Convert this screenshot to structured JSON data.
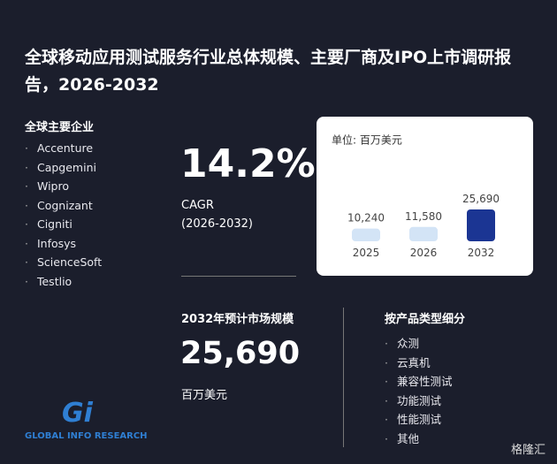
{
  "header": {
    "title": "全球移动应用测试服务行业总体规模、主要厂商及IPO上市调研报告，2026-2032"
  },
  "companies": {
    "title": "全球主要企业",
    "items": [
      "Accenture",
      "Capgemini",
      "Wipro",
      "Cognizant",
      "Cigniti",
      "Infosys",
      "ScienceSoft",
      "Testlio"
    ]
  },
  "cagr": {
    "value": "14.2%",
    "label": "CAGR",
    "period": "(2026-2032)"
  },
  "market": {
    "title": "2032年预计市场规模",
    "value": "25,690",
    "unit": "百万美元"
  },
  "segments": {
    "title": "按产品类型细分",
    "items": [
      "众测",
      "云真机",
      "兼容性测试",
      "功能测试",
      "性能测试",
      "其他"
    ]
  },
  "logo": {
    "mark": "Gi",
    "text": "GLOBAL INFO RESEARCH"
  },
  "watermark": "格隆汇",
  "chart_data": {
    "type": "bar",
    "subtitle": "单位: 百万美元",
    "categories": [
      "2025",
      "2026",
      "2032"
    ],
    "values": [
      10240,
      11580,
      25690
    ],
    "value_labels": [
      "10,240",
      "11,580",
      "25,690"
    ],
    "colors": [
      "#d3e4f6",
      "#d3e4f6",
      "#1b3593"
    ]
  }
}
